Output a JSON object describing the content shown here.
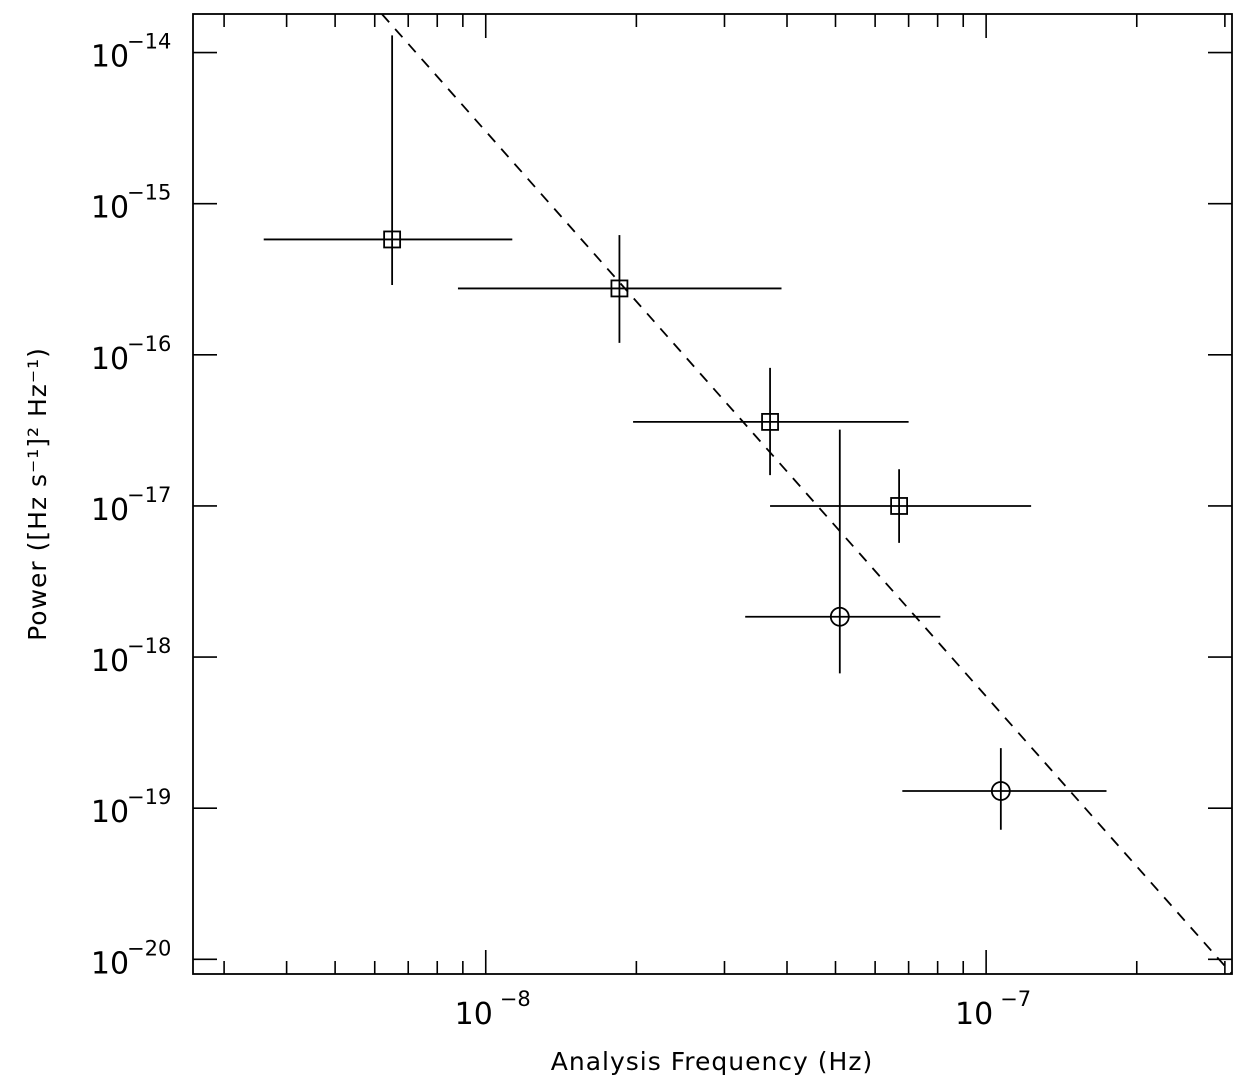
{
  "chart_data": {
    "type": "scatter",
    "title": "",
    "xlabel": "Analysis Frequency (Hz)",
    "ylabel": "Power ([Hz s⁻¹]² Hz⁻¹)",
    "xscale": "log",
    "yscale": "log",
    "xlim": [
      2.6e-09,
      3.1e-07
    ],
    "ylim": [
      8e-21,
      1.8e-14
    ],
    "x_ticks": [
      {
        "base": "10",
        "exp": "−8",
        "value": 1e-08
      },
      {
        "base": "10",
        "exp": "−7",
        "value": 1e-07
      }
    ],
    "y_ticks": [
      {
        "base": "10",
        "exp": "−14",
        "value": 1e-14
      },
      {
        "base": "10",
        "exp": "−15",
        "value": 1e-15
      },
      {
        "base": "10",
        "exp": "−16",
        "value": 1e-16
      },
      {
        "base": "10",
        "exp": "−17",
        "value": 1e-17
      },
      {
        "base": "10",
        "exp": "−18",
        "value": 1e-18
      },
      {
        "base": "10",
        "exp": "−19",
        "value": 1e-19
      },
      {
        "base": "10",
        "exp": "−20",
        "value": 1e-20
      }
    ],
    "grid": false,
    "legend": "none",
    "series": [
      {
        "marker": "square",
        "points": [
          {
            "x": 6.5e-09,
            "y": 5.8e-16,
            "xerr": [
              3.6e-09,
              1.13e-08
            ],
            "yerr": [
              2.9e-16,
              1.3e-14
            ]
          },
          {
            "x": 1.85e-08,
            "y": 2.75e-16,
            "xerr": [
              8.8e-09,
              3.9e-08
            ],
            "yerr": [
              1.2e-16,
              6.2e-16
            ]
          },
          {
            "x": 3.7e-08,
            "y": 3.6e-17,
            "xerr": [
              1.97e-08,
              7e-08
            ],
            "yerr": [
              1.6e-17,
              8.2e-17
            ]
          },
          {
            "x": 6.7e-08,
            "y": 1e-17,
            "xerr": [
              3.7e-08,
              1.23e-07
            ],
            "yerr": [
              5.7e-18,
              1.75e-17
            ]
          }
        ]
      },
      {
        "marker": "circle",
        "points": [
          {
            "x": 5.1e-08,
            "y": 1.85e-18,
            "xerr": [
              3.3e-08,
              8.1e-08
            ],
            "yerr": [
              7.8e-19,
              3.2e-17
            ]
          },
          {
            "x": 1.07e-07,
            "y": 1.3e-19,
            "xerr": [
              6.8e-08,
              1.74e-07
            ],
            "yerr": [
              7.2e-20,
              2.5e-19
            ]
          }
        ]
      }
    ],
    "fit_line": {
      "style": "dashed",
      "x": [
        6.2e-09,
        3.1e-07
      ],
      "y": [
        1.8e-14,
        8e-21
      ]
    }
  }
}
